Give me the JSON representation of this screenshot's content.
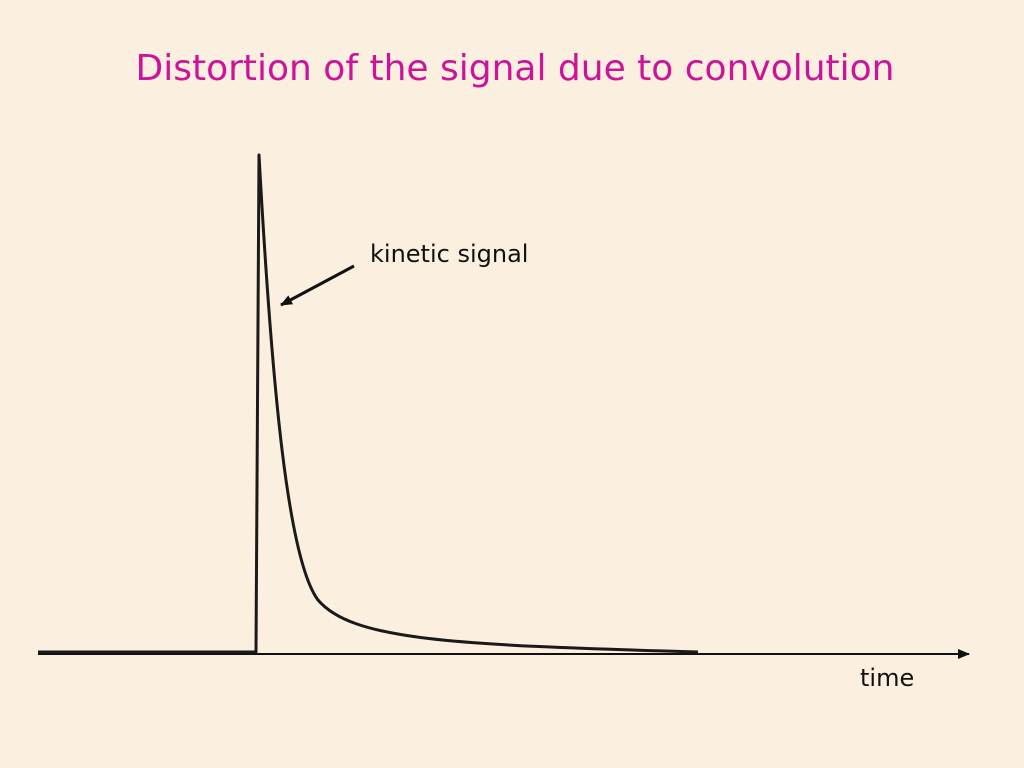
{
  "slide": {
    "title": "Distortion of the signal due to convolution",
    "annotation": "kinetic signal",
    "axis_label": "time"
  }
}
